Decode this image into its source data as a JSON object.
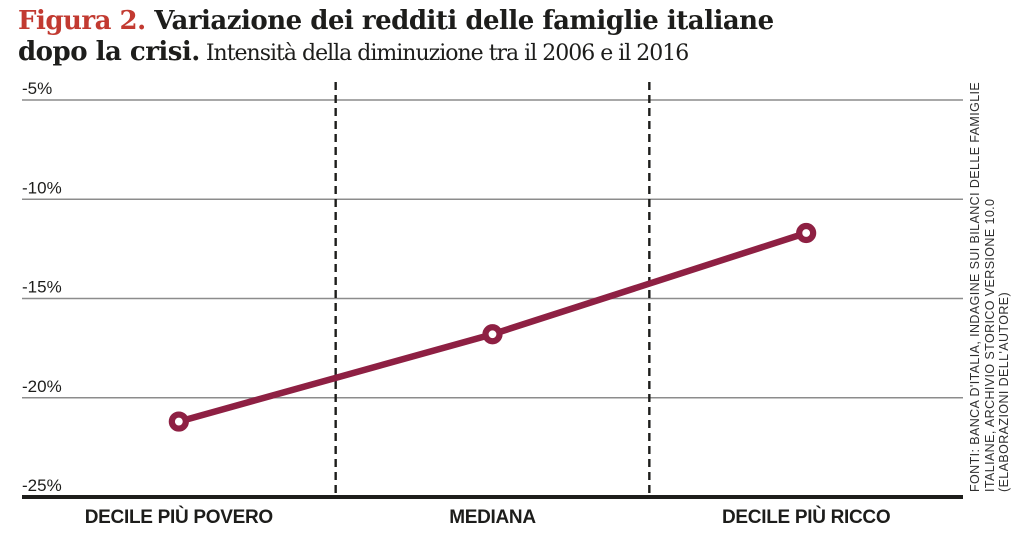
{
  "header": {
    "figure_label": "Figura 2.",
    "title_line1_rest": " Variazione dei redditi delle famiglie italiane",
    "title_line2_bold": "dopo la crisi.",
    "subtitle": " Intensità della diminuzione tra il 2006 e il 2016"
  },
  "source_note": {
    "lines": [
      "FONTI: BANCA D'ITALIA, INDAGINE SUI BILANCI DELLE FAMIGLIE",
      "ITALIANE, ARCHIVIO STORICO VERSIONE 10.0",
      "(ELABORAZIONI DELL'AUTORE)"
    ]
  },
  "chart_data": {
    "type": "line",
    "title": "Figura 2. Variazione dei redditi delle famiglie italiane dopo la crisi. Intensità della diminuzione tra il 2006 e il 2016",
    "categories": [
      "DECILE PIÙ POVERO",
      "MEDIANA",
      "DECILE PIÙ RICCO"
    ],
    "values": [
      -21.2,
      -16.8,
      -11.7
    ],
    "y_ticks": [
      -5,
      -10,
      -15,
      -20,
      -25
    ],
    "y_tick_labels": [
      "-5%",
      "-10%",
      "-15%",
      "-20%",
      "-25%"
    ],
    "ylim": [
      -25,
      -5
    ],
    "xlabel": "",
    "ylabel": "",
    "grid": "horizontal-gray-lines",
    "column_separators": "vertical-dashed-black",
    "marker": "open-circle",
    "legend": "none",
    "line_color": "#8e2043",
    "grid_color": "#8c8c8c",
    "axis_color": "#1d1d1b"
  }
}
